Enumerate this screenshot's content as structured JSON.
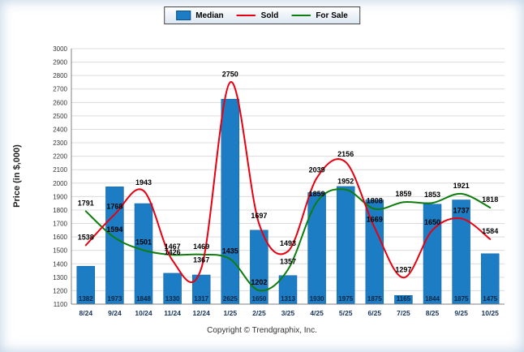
{
  "legend": {
    "items": [
      {
        "label": "Median",
        "type": "bar",
        "color": "#1d7dc4"
      },
      {
        "label": "Sold",
        "type": "line",
        "color": "#e80011"
      },
      {
        "label": "For Sale",
        "type": "line",
        "color": "#0d7d0d"
      }
    ]
  },
  "footer": {
    "copyright": "Copyright © Trendgraphix, Inc."
  },
  "chart_data": {
    "type": "bar",
    "subtype": "combo-bar-line",
    "categories": [
      "8/24",
      "9/24",
      "10/24",
      "11/24",
      "12/24",
      "1/25",
      "2/25",
      "3/25",
      "4/25",
      "5/25",
      "6/25",
      "7/25",
      "8/25",
      "9/25",
      "10/25"
    ],
    "series": [
      {
        "name": "Median",
        "type": "bar",
        "color": "#1d7dc4",
        "values": [
          1382,
          1973,
          1848,
          1330,
          1317,
          2625,
          1650,
          1313,
          1930,
          1975,
          1875,
          1165,
          1844,
          1875,
          1475
        ]
      },
      {
        "name": "Sold",
        "type": "line",
        "color": "#e80011",
        "values": [
          1538,
          1768,
          1943,
          1426,
          1367,
          2750,
          1697,
          1493,
          2039,
          2156,
          1669,
          1297,
          1650,
          1737,
          1584
        ]
      },
      {
        "name": "For Sale",
        "type": "line",
        "color": "#0d7d0d",
        "values": [
          1791,
          1594,
          1501,
          1467,
          1469,
          1435,
          1202,
          1357,
          1859,
          1952,
          1808,
          1859,
          1853,
          1921,
          1818
        ]
      }
    ],
    "title": "",
    "xlabel": "",
    "ylabel": "Price (in $,000)",
    "ylim": [
      1100,
      3000
    ],
    "ytick_step": 100,
    "grid": true,
    "legend_position": "top-center"
  }
}
